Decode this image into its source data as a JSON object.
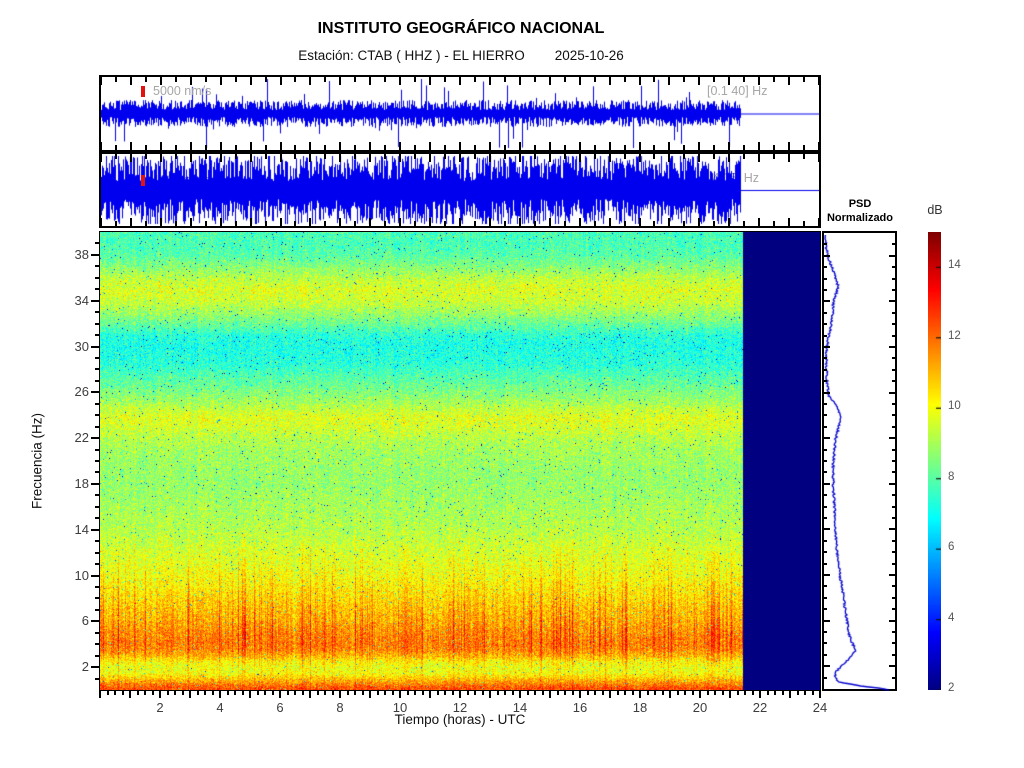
{
  "header": {
    "title": "INSTITUTO GEOGRÁFICO NACIONAL",
    "station_label": "Estación:  CTAB ( HHZ ) - EL HIERRO",
    "date": "2025-10-26"
  },
  "chart_data": {
    "type": "heatmap",
    "title": "INSTITUTO GEOGRÁFICO NACIONAL",
    "subtitle": "Estación: CTAB ( HHZ ) - EL HIERRO — 2025-10-26",
    "xlabel": "Tiempo (horas) - UTC",
    "ylabel": "Frecuencia (Hz)",
    "x_range_hours": [
      0,
      24
    ],
    "y_range_hz": [
      0,
      40
    ],
    "x_tick_labels": [
      2,
      4,
      6,
      8,
      10,
      12,
      14,
      16,
      18,
      20,
      22,
      24
    ],
    "y_tick_labels": [
      2,
      6,
      10,
      14,
      18,
      22,
      26,
      30,
      34,
      38
    ],
    "data_end_hour": 21.4,
    "clim_db": [
      2,
      15
    ],
    "colormap": "jet",
    "no_data_color": "#000084",
    "trace_color": "#0000ee",
    "colorbar": {
      "label": "dB",
      "ticks": [
        2,
        4,
        6,
        8,
        10,
        12,
        14
      ]
    },
    "psd_panel": {
      "title": "PSD\nNormalizado",
      "curve_color": "#0000cc"
    },
    "traces": [
      {
        "scale_label": "5000 nm/s",
        "band_label": "[0.1 40] Hz",
        "rel_amplitude": 0.25
      },
      {
        "scale_label": "1000 nm/s",
        "band_label": "[4 15] Hz",
        "rel_amplitude": 0.75
      }
    ],
    "spectral_profile_hz_db": [
      [
        0,
        12.5
      ],
      [
        0.3,
        12.2
      ],
      [
        0.7,
        11.4
      ],
      [
        1,
        10.9
      ],
      [
        1.5,
        10.0
      ],
      [
        2,
        9.9
      ],
      [
        2.5,
        10.2
      ],
      [
        3,
        11.0
      ],
      [
        3.5,
        11.6
      ],
      [
        4,
        11.8
      ],
      [
        5,
        11.6
      ],
      [
        6,
        11.2
      ],
      [
        7,
        10.9
      ],
      [
        8,
        10.6
      ],
      [
        9,
        10.3
      ],
      [
        10,
        10.0
      ],
      [
        11,
        9.8
      ],
      [
        12,
        9.6
      ],
      [
        13,
        9.4
      ],
      [
        14,
        9.2
      ],
      [
        15,
        9.1
      ],
      [
        16,
        9.0
      ],
      [
        17,
        8.9
      ],
      [
        18,
        8.8
      ],
      [
        19,
        8.8
      ],
      [
        20,
        8.9
      ],
      [
        21,
        9.0
      ],
      [
        22,
        9.2
      ],
      [
        23,
        9.6
      ],
      [
        23.8,
        9.8
      ],
      [
        24.5,
        9.4
      ],
      [
        25.5,
        8.8
      ],
      [
        26.5,
        8.3
      ],
      [
        27.5,
        7.9
      ],
      [
        28.5,
        7.4
      ],
      [
        30,
        7.2
      ],
      [
        31,
        7.4
      ],
      [
        32,
        8.2
      ],
      [
        33,
        8.9
      ],
      [
        34,
        9.5
      ],
      [
        35,
        9.7
      ],
      [
        36,
        9.3
      ],
      [
        37,
        8.6
      ],
      [
        38,
        8.0
      ],
      [
        39,
        7.8
      ],
      [
        40,
        7.8
      ]
    ],
    "psd_profile_hz_frac": [
      [
        0.05,
        0.92
      ],
      [
        0.2,
        0.85
      ],
      [
        0.4,
        0.55
      ],
      [
        0.8,
        0.2
      ],
      [
        1.2,
        0.16
      ],
      [
        1.7,
        0.17
      ],
      [
        2.2,
        0.24
      ],
      [
        3,
        0.38
      ],
      [
        3.5,
        0.45
      ],
      [
        4.2,
        0.4
      ],
      [
        5,
        0.35
      ],
      [
        6,
        0.33
      ],
      [
        7,
        0.3
      ],
      [
        8.5,
        0.27
      ],
      [
        10,
        0.23
      ],
      [
        12,
        0.19
      ],
      [
        14,
        0.16
      ],
      [
        16,
        0.15
      ],
      [
        18,
        0.13
      ],
      [
        20,
        0.13
      ],
      [
        22,
        0.16
      ],
      [
        24,
        0.24
      ],
      [
        24.8,
        0.2
      ],
      [
        26,
        0.06
      ],
      [
        27.5,
        0.04
      ],
      [
        29.5,
        0.03
      ],
      [
        31,
        0.06
      ],
      [
        32,
        0.1
      ],
      [
        33,
        0.12
      ],
      [
        34,
        0.13
      ],
      [
        35.5,
        0.2
      ],
      [
        36.5,
        0.15
      ],
      [
        38,
        0.06
      ],
      [
        39,
        0.03
      ],
      [
        40,
        0.01
      ]
    ],
    "texture": {
      "pixel_sigma_db": 0.55,
      "speckle_fraction": 0.012,
      "stripe_sigma_db": 0.4
    }
  }
}
